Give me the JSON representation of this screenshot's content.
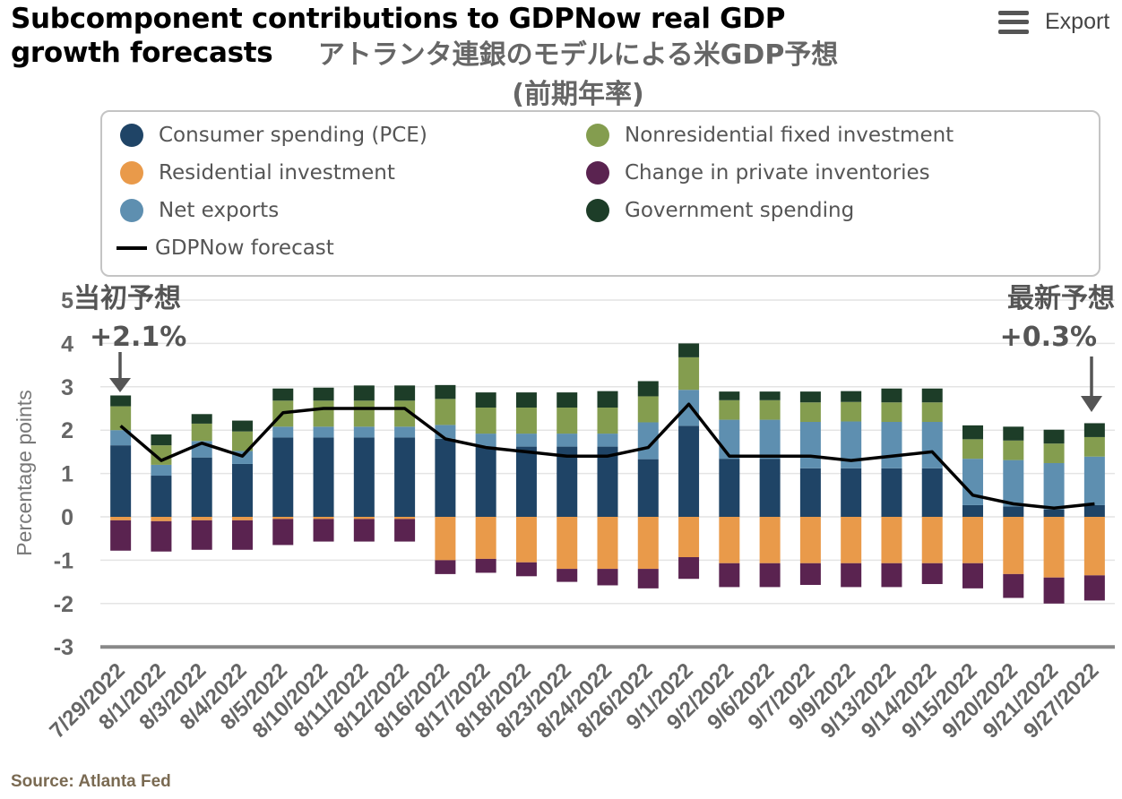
{
  "title": "Subcomponent contributions to GDPNow real GDP growth forecasts",
  "subtitle_line1": "アトランタ連銀のモデルによる米GDP予想",
  "subtitle_line2": "(前期年率)",
  "export": {
    "label": "Export",
    "icon": "hamburger-menu-icon"
  },
  "source": "Source: Atlanta Fed",
  "annotations": {
    "first": {
      "label": "当初予想",
      "value": "+2.1%"
    },
    "latest": {
      "label": "最新予想",
      "value": "+0.3%"
    }
  },
  "chart_data": {
    "type": "bar",
    "stacked": true,
    "ylabel": "Percentage points",
    "ylim": [
      -3,
      5
    ],
    "yticks": [
      "5",
      "4",
      "3",
      "2",
      "1",
      "0",
      "-1",
      "-2",
      "-3"
    ],
    "grid": true,
    "legend_position": "top",
    "categories": [
      "7/29/2022",
      "8/1/2022",
      "8/3/2022",
      "8/4/2022",
      "8/5/2022",
      "8/10/2022",
      "8/11/2022",
      "8/12/2022",
      "8/16/2022",
      "8/17/2022",
      "8/18/2022",
      "8/23/2022",
      "8/24/2022",
      "8/26/2022",
      "9/1/2022",
      "9/2/2022",
      "9/6/2022",
      "9/7/2022",
      "9/9/2022",
      "9/13/2022",
      "9/14/2022",
      "9/15/2022",
      "9/20/2022",
      "9/21/2022",
      "9/27/2022"
    ],
    "series": [
      {
        "name": "Consumer spending (PCE)",
        "color": "#1f4466",
        "values": [
          1.65,
          0.95,
          1.37,
          1.22,
          1.83,
          1.83,
          1.83,
          1.83,
          1.8,
          1.62,
          1.62,
          1.62,
          1.62,
          1.33,
          2.1,
          1.34,
          1.34,
          1.12,
          1.12,
          1.12,
          1.12,
          0.27,
          0.24,
          0.17,
          0.27
        ]
      },
      {
        "name": "Residential investment",
        "color": "#e99a4a",
        "values": [
          -0.08,
          -0.1,
          -0.08,
          -0.08,
          -0.05,
          -0.05,
          -0.05,
          -0.05,
          -1.0,
          -0.97,
          -1.05,
          -1.2,
          -1.2,
          -1.2,
          -0.93,
          -1.07,
          -1.07,
          -1.07,
          -1.07,
          -1.07,
          -1.07,
          -1.07,
          -1.32,
          -1.4,
          -1.35
        ]
      },
      {
        "name": "Net exports",
        "color": "#5e8fb0",
        "values": [
          0.35,
          0.25,
          0.38,
          0.3,
          0.25,
          0.25,
          0.25,
          0.25,
          0.32,
          0.3,
          0.3,
          0.3,
          0.3,
          0.85,
          0.83,
          0.9,
          0.9,
          1.07,
          1.08,
          1.07,
          1.07,
          1.07,
          1.07,
          1.07,
          1.12
        ]
      },
      {
        "name": "Nonresidential fixed investment",
        "color": "#849d4f",
        "values": [
          0.55,
          0.45,
          0.4,
          0.45,
          0.6,
          0.6,
          0.6,
          0.6,
          0.6,
          0.6,
          0.6,
          0.6,
          0.6,
          0.6,
          0.75,
          0.45,
          0.45,
          0.45,
          0.45,
          0.45,
          0.45,
          0.45,
          0.45,
          0.45,
          0.45
        ]
      },
      {
        "name": "Change in private inventories",
        "color": "#5a2350",
        "values": [
          -0.7,
          -0.7,
          -0.68,
          -0.68,
          -0.6,
          -0.52,
          -0.52,
          -0.52,
          -0.32,
          -0.32,
          -0.32,
          -0.3,
          -0.38,
          -0.45,
          -0.5,
          -0.55,
          -0.55,
          -0.5,
          -0.55,
          -0.55,
          -0.48,
          -0.58,
          -0.55,
          -0.6,
          -0.58
        ]
      },
      {
        "name": "Government spending",
        "color": "#1d3d28",
        "values": [
          0.25,
          0.25,
          0.22,
          0.25,
          0.28,
          0.3,
          0.35,
          0.35,
          0.32,
          0.35,
          0.35,
          0.35,
          0.38,
          0.35,
          0.32,
          0.2,
          0.2,
          0.25,
          0.25,
          0.32,
          0.32,
          0.32,
          0.32,
          0.32,
          0.32
        ]
      }
    ],
    "line": {
      "name": "GDPNow forecast",
      "color": "#000000",
      "values": [
        2.1,
        1.3,
        1.7,
        1.4,
        2.4,
        2.5,
        2.5,
        2.5,
        1.8,
        1.6,
        1.5,
        1.4,
        1.4,
        1.6,
        2.6,
        1.4,
        1.4,
        1.4,
        1.3,
        1.4,
        1.5,
        0.5,
        0.3,
        0.2,
        0.3
      ]
    }
  }
}
